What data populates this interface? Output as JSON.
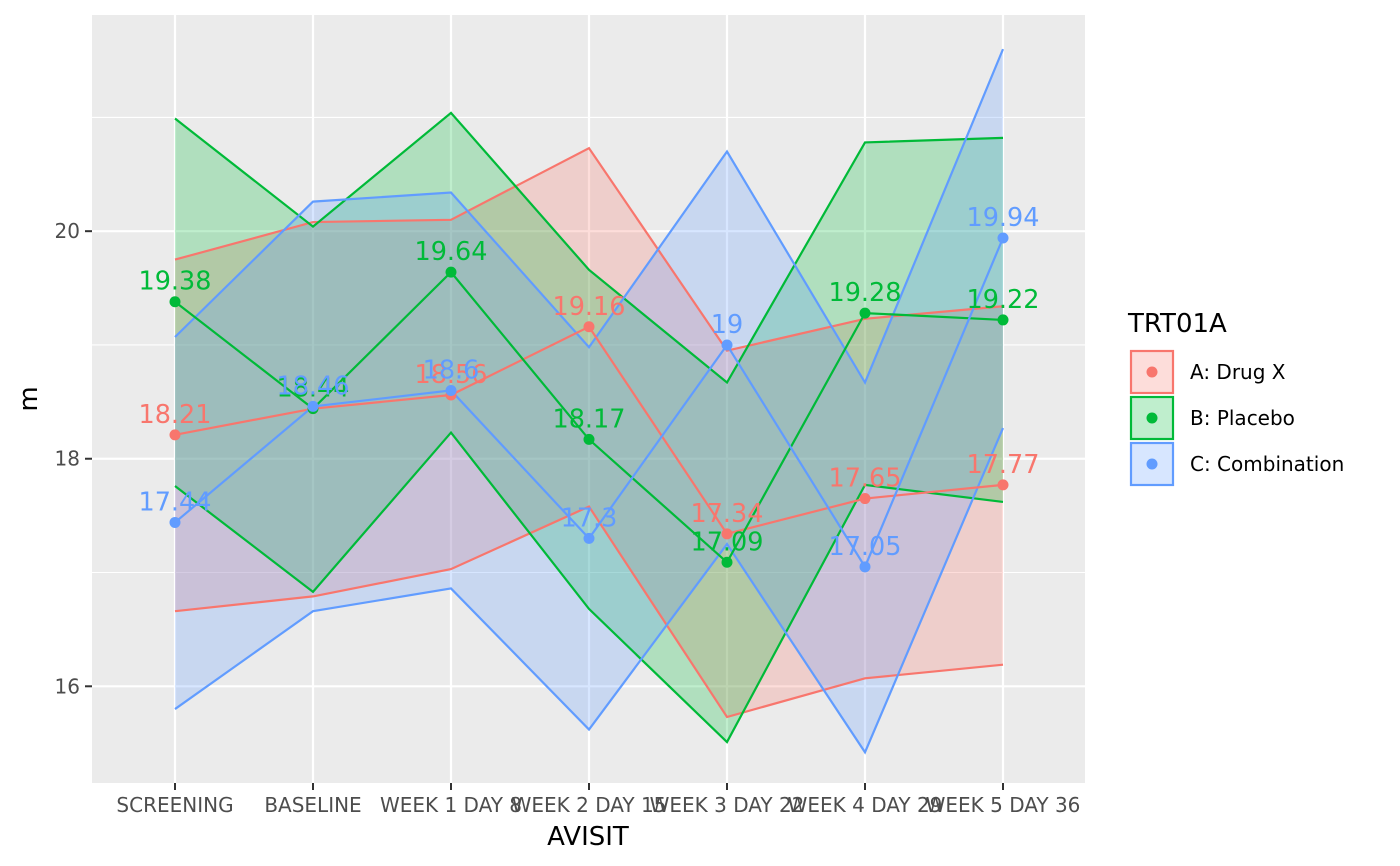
{
  "chart_data": {
    "type": "line",
    "xlabel": "AVISIT",
    "ylabel": "m",
    "categories": [
      "SCREENING",
      "BASELINE",
      "WEEK 1 DAY 8",
      "WEEK 2 DAY 15",
      "WEEK 3 DAY 22",
      "WEEK 4 DAY 29",
      "WEEK 5 DAY 36"
    ],
    "ylim": [
      15.15,
      21.9
    ],
    "yticks": [
      16,
      18,
      20
    ],
    "grid": true,
    "legend_title": "TRT01A",
    "legend_position": "right",
    "series": [
      {
        "name": "A: Drug X",
        "color": "#F8766D",
        "values": [
          18.21,
          18.44,
          18.56,
          19.16,
          17.34,
          17.65,
          17.77
        ],
        "labels": [
          "18.21",
          "18.44",
          "18.56",
          "19.16",
          "17.34",
          "17.65",
          "17.77"
        ],
        "upper": [
          19.75,
          20.08,
          20.1,
          20.73,
          18.95,
          19.23,
          19.34
        ],
        "lower": [
          16.66,
          16.79,
          17.03,
          17.58,
          15.73,
          16.07,
          16.19
        ]
      },
      {
        "name": "B: Placebo",
        "color": "#00BA38",
        "values": [
          19.38,
          18.44,
          19.64,
          18.17,
          17.09,
          19.28,
          19.22
        ],
        "labels": [
          "19.38",
          "18.44",
          "19.64",
          "18.17",
          "17.09",
          "19.28",
          "19.22"
        ],
        "upper": [
          20.99,
          20.04,
          21.04,
          19.66,
          18.67,
          20.78,
          20.82
        ],
        "lower": [
          17.76,
          16.83,
          18.23,
          16.68,
          15.51,
          17.77,
          17.62
        ]
      },
      {
        "name": "C: Combination",
        "color": "#619CFF",
        "values": [
          17.44,
          18.46,
          18.6,
          17.3,
          19.0,
          17.05,
          19.94
        ],
        "labels": [
          "17.44",
          "18.46",
          "18.6",
          "17.3",
          "19",
          "17.05",
          "19.94"
        ],
        "upper": [
          19.07,
          20.26,
          20.34,
          18.98,
          20.7,
          18.67,
          21.6
        ],
        "lower": [
          15.8,
          16.66,
          16.86,
          15.62,
          17.25,
          15.42,
          18.27
        ]
      }
    ]
  }
}
